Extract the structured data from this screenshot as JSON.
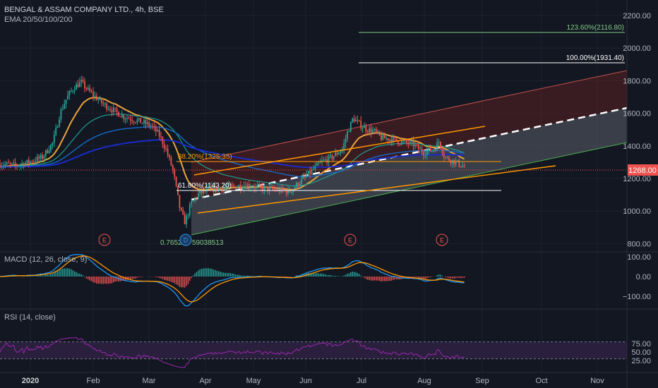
{
  "header": {
    "symbol_line": "BENGAL & ASSAM COMPANY LTD., 4h, BSE",
    "indicator_line": "EMA 20/50/100/200"
  },
  "panes": {
    "macd_label": "MACD (12, 26, close, 9)",
    "rsi_label": "RSI (14, close)"
  },
  "colors": {
    "background": "#131722",
    "grid": "#1e222d",
    "candle_up": "#26a69a",
    "candle_down": "#ef5350",
    "ema20": "#e8a43a",
    "ema50": "#1f9e8f",
    "ema100": "#1565c0",
    "ema200": "#1a2bc8",
    "channel_upper_fill": "#5a2020",
    "channel_lower_fill": "#5b5f6a",
    "rsi_line": "#9c27b0",
    "rsi_band": "#2a1f3d",
    "price_line": "#ef5350"
  },
  "price_axis": {
    "ticks": [
      "2200.00",
      "2000.00",
      "1800.00",
      "1600.00",
      "1400.00",
      "1200.00",
      "1000.00",
      "800.00"
    ],
    "current_price": "1268.00"
  },
  "macd_axis": {
    "ticks": [
      "100.00",
      "0.00",
      "−100.00"
    ]
  },
  "rsi_axis": {
    "ticks": [
      "75.00",
      "50.00",
      "25.00"
    ]
  },
  "time_axis": {
    "labels": [
      "2020",
      "Feb",
      "Mar",
      "Apr",
      "May",
      "Jun",
      "Jul",
      "Aug",
      "Sep",
      "Oct",
      "Nov"
    ]
  },
  "fib_levels": [
    {
      "label": "123.60%(2116.80)",
      "color": "#81c784"
    },
    {
      "label": "100.00%(1931.40)",
      "color": "#ffffff"
    },
    {
      "label": "38.20%(1325.35)",
      "color": "#ff9800"
    },
    {
      "label": "61.80%(1143.20)",
      "color": "#ffffff"
    },
    {
      "label": "0.7652",
      "color": "#81c784"
    }
  ],
  "fib_extra_text": "59038513",
  "markers": {
    "earnings": [
      "E",
      "E",
      "E"
    ],
    "dividend": "D"
  }
}
